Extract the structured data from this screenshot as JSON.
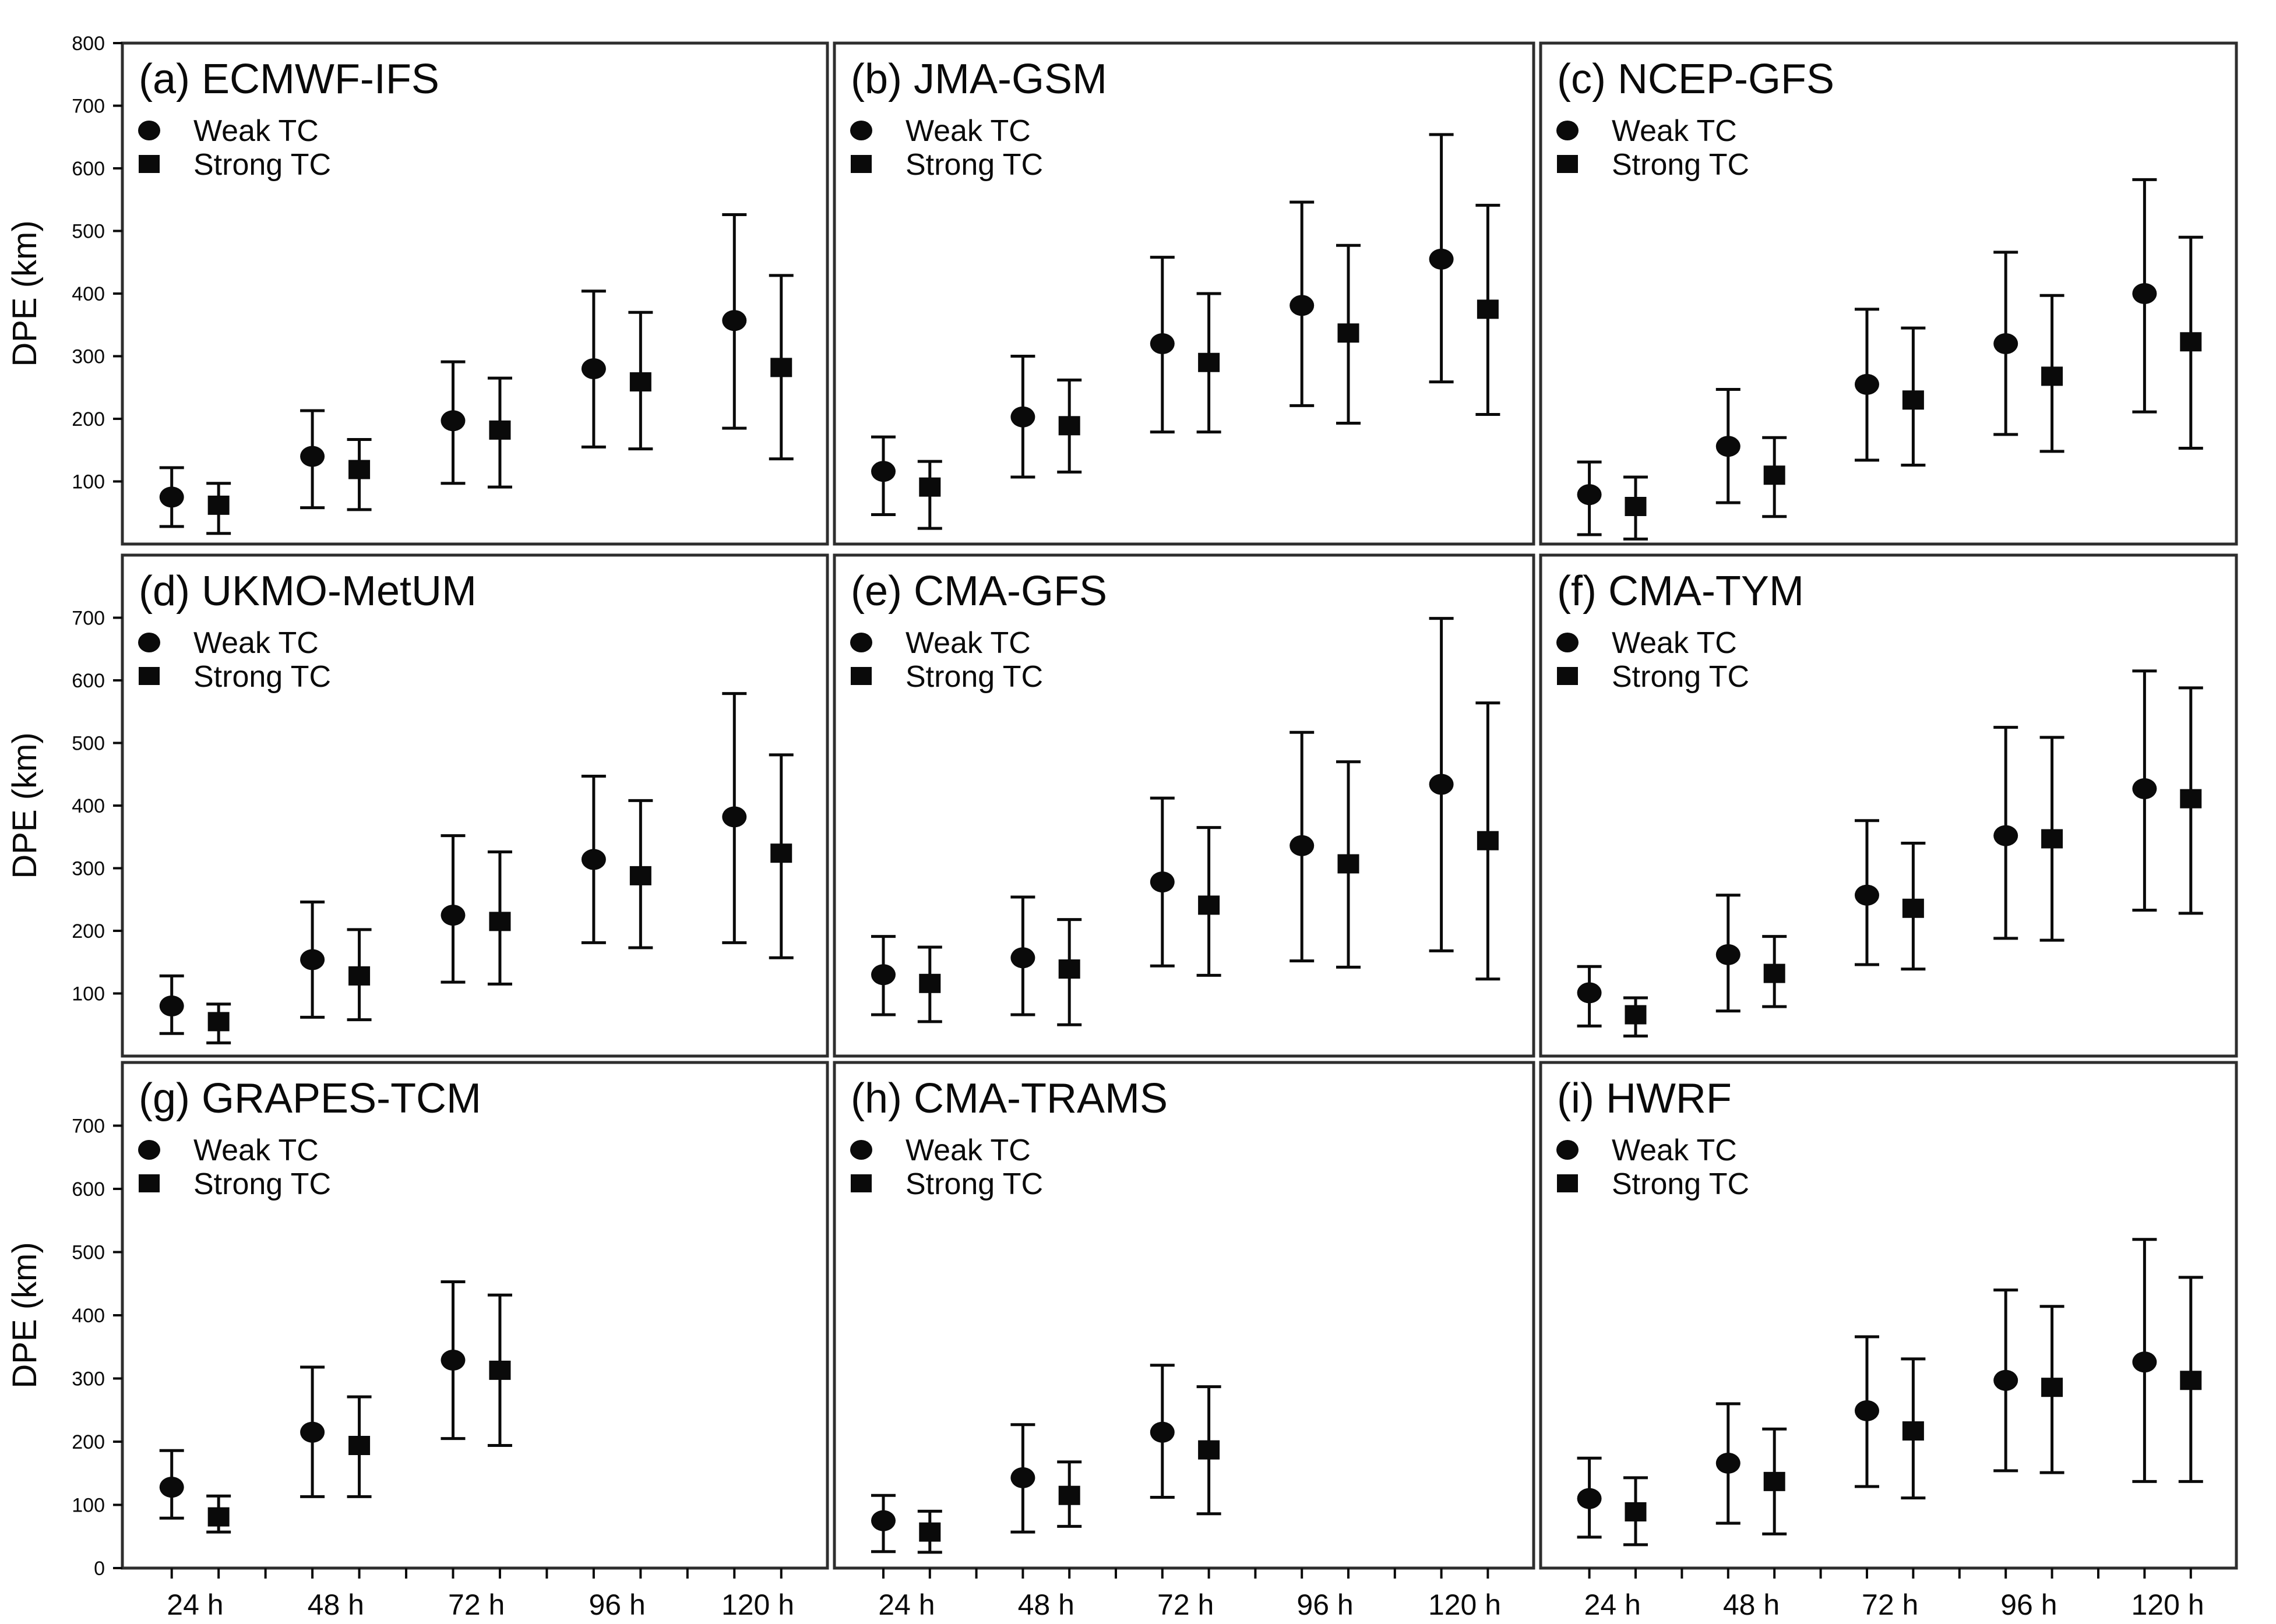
{
  "figure": {
    "background": "#ffffff",
    "ink": "#0a0a0a",
    "frame": "#2e2e2e",
    "ylabel": "DPE (km)",
    "ylim": [
      0,
      800
    ],
    "x_tick_labels": [
      "24 h",
      "48 h",
      "72 h",
      "96 h",
      "120 h"
    ],
    "rows": [
      {
        "ytick_labels": [
          "800",
          "700",
          "600",
          "500",
          "400",
          "300",
          "200",
          "100"
        ]
      },
      {
        "ytick_labels": [
          "700",
          "600",
          "500",
          "400",
          "300",
          "200",
          "100"
        ]
      },
      {
        "ytick_labels": [
          "700",
          "600",
          "500",
          "400",
          "300",
          "200",
          "100",
          "0"
        ]
      }
    ],
    "legend": {
      "weak_label": "Weak TC",
      "strong_label": "Strong TC"
    }
  },
  "chart_data": [
    {
      "panel": "a",
      "title": "(a) ECMWF-IFS",
      "type": "scatter",
      "series": [
        {
          "name": "Weak TC",
          "marker": "circle",
          "values": [
            {
              "x": "24 h",
              "mean": 75,
              "lo": 28,
              "hi": 122
            },
            {
              "x": "48 h",
              "mean": 140,
              "lo": 58,
              "hi": 213
            },
            {
              "x": "72 h",
              "mean": 197,
              "lo": 97,
              "hi": 291
            },
            {
              "x": "96 h",
              "mean": 280,
              "lo": 155,
              "hi": 404
            },
            {
              "x": "120 h",
              "mean": 357,
              "lo": 185,
              "hi": 526
            }
          ]
        },
        {
          "name": "Strong TC",
          "marker": "square",
          "values": [
            {
              "x": "24 h",
              "mean": 62,
              "lo": 17,
              "hi": 97
            },
            {
              "x": "48 h",
              "mean": 119,
              "lo": 55,
              "hi": 167
            },
            {
              "x": "72 h",
              "mean": 182,
              "lo": 91,
              "hi": 265
            },
            {
              "x": "96 h",
              "mean": 259,
              "lo": 152,
              "hi": 370
            },
            {
              "x": "120 h",
              "mean": 282,
              "lo": 136,
              "hi": 429
            }
          ]
        }
      ]
    },
    {
      "panel": "b",
      "title": "(b) JMA-GSM",
      "type": "scatter",
      "series": [
        {
          "name": "Weak TC",
          "marker": "circle",
          "values": [
            {
              "x": "24 h",
              "mean": 116,
              "lo": 47,
              "hi": 171
            },
            {
              "x": "48 h",
              "mean": 203,
              "lo": 107,
              "hi": 300
            },
            {
              "x": "72 h",
              "mean": 320,
              "lo": 179,
              "hi": 458
            },
            {
              "x": "96 h",
              "mean": 381,
              "lo": 221,
              "hi": 546
            },
            {
              "x": "120 h",
              "mean": 455,
              "lo": 259,
              "hi": 654
            }
          ]
        },
        {
          "name": "Strong TC",
          "marker": "square",
          "values": [
            {
              "x": "24 h",
              "mean": 91,
              "lo": 25,
              "hi": 132
            },
            {
              "x": "48 h",
              "mean": 189,
              "lo": 115,
              "hi": 262
            },
            {
              "x": "72 h",
              "mean": 290,
              "lo": 179,
              "hi": 400
            },
            {
              "x": "96 h",
              "mean": 337,
              "lo": 193,
              "hi": 477
            },
            {
              "x": "120 h",
              "mean": 375,
              "lo": 207,
              "hi": 541
            }
          ]
        }
      ]
    },
    {
      "panel": "c",
      "title": "(c) NCEP-GFS",
      "type": "scatter",
      "series": [
        {
          "name": "Weak TC",
          "marker": "circle",
          "values": [
            {
              "x": "24 h",
              "mean": 79,
              "lo": 15,
              "hi": 131
            },
            {
              "x": "48 h",
              "mean": 156,
              "lo": 66,
              "hi": 247
            },
            {
              "x": "72 h",
              "mean": 255,
              "lo": 134,
              "hi": 375
            },
            {
              "x": "96 h",
              "mean": 320,
              "lo": 175,
              "hi": 466
            },
            {
              "x": "120 h",
              "mean": 400,
              "lo": 211,
              "hi": 582
            }
          ]
        },
        {
          "name": "Strong TC",
          "marker": "square",
          "values": [
            {
              "x": "24 h",
              "mean": 60,
              "lo": 8,
              "hi": 107
            },
            {
              "x": "48 h",
              "mean": 110,
              "lo": 44,
              "hi": 170
            },
            {
              "x": "72 h",
              "mean": 230,
              "lo": 126,
              "hi": 345
            },
            {
              "x": "96 h",
              "mean": 268,
              "lo": 148,
              "hi": 397
            },
            {
              "x": "120 h",
              "mean": 323,
              "lo": 153,
              "hi": 490
            }
          ]
        }
      ]
    },
    {
      "panel": "d",
      "title": "(d) UKMO-MetUM",
      "type": "scatter",
      "series": [
        {
          "name": "Weak TC",
          "marker": "circle",
          "values": [
            {
              "x": "24 h",
              "mean": 80,
              "lo": 36,
              "hi": 128
            },
            {
              "x": "48 h",
              "mean": 154,
              "lo": 62,
              "hi": 246
            },
            {
              "x": "72 h",
              "mean": 225,
              "lo": 118,
              "hi": 352
            },
            {
              "x": "96 h",
              "mean": 314,
              "lo": 181,
              "hi": 447
            },
            {
              "x": "120 h",
              "mean": 382,
              "lo": 181,
              "hi": 579
            }
          ]
        },
        {
          "name": "Strong TC",
          "marker": "square",
          "values": [
            {
              "x": "24 h",
              "mean": 55,
              "lo": 21,
              "hi": 83
            },
            {
              "x": "48 h",
              "mean": 128,
              "lo": 58,
              "hi": 202
            },
            {
              "x": "72 h",
              "mean": 215,
              "lo": 115,
              "hi": 326
            },
            {
              "x": "96 h",
              "mean": 288,
              "lo": 173,
              "hi": 408
            },
            {
              "x": "120 h",
              "mean": 324,
              "lo": 157,
              "hi": 481
            }
          ]
        }
      ]
    },
    {
      "panel": "e",
      "title": "(e) CMA-GFS",
      "type": "scatter",
      "series": [
        {
          "name": "Weak TC",
          "marker": "circle",
          "values": [
            {
              "x": "24 h",
              "mean": 130,
              "lo": 66,
              "hi": 191
            },
            {
              "x": "48 h",
              "mean": 157,
              "lo": 66,
              "hi": 254
            },
            {
              "x": "72 h",
              "mean": 278,
              "lo": 144,
              "hi": 412
            },
            {
              "x": "96 h",
              "mean": 336,
              "lo": 152,
              "hi": 517
            },
            {
              "x": "120 h",
              "mean": 434,
              "lo": 168,
              "hi": 699
            }
          ]
        },
        {
          "name": "Strong TC",
          "marker": "square",
          "values": [
            {
              "x": "24 h",
              "mean": 116,
              "lo": 55,
              "hi": 174
            },
            {
              "x": "48 h",
              "mean": 139,
              "lo": 50,
              "hi": 218
            },
            {
              "x": "72 h",
              "mean": 241,
              "lo": 129,
              "hi": 365
            },
            {
              "x": "96 h",
              "mean": 307,
              "lo": 142,
              "hi": 470
            },
            {
              "x": "120 h",
              "mean": 344,
              "lo": 123,
              "hi": 564
            }
          ]
        }
      ]
    },
    {
      "panel": "f",
      "title": "(f) CMA-TYM",
      "type": "scatter",
      "series": [
        {
          "name": "Weak TC",
          "marker": "circle",
          "values": [
            {
              "x": "24 h",
              "mean": 101,
              "lo": 48,
              "hi": 143
            },
            {
              "x": "48 h",
              "mean": 162,
              "lo": 72,
              "hi": 257
            },
            {
              "x": "72 h",
              "mean": 257,
              "lo": 146,
              "hi": 376
            },
            {
              "x": "96 h",
              "mean": 352,
              "lo": 188,
              "hi": 525
            },
            {
              "x": "120 h",
              "mean": 427,
              "lo": 233,
              "hi": 615
            }
          ]
        },
        {
          "name": "Strong TC",
          "marker": "square",
          "values": [
            {
              "x": "24 h",
              "mean": 66,
              "lo": 32,
              "hi": 93
            },
            {
              "x": "48 h",
              "mean": 132,
              "lo": 79,
              "hi": 191
            },
            {
              "x": "72 h",
              "mean": 236,
              "lo": 139,
              "hi": 340
            },
            {
              "x": "96 h",
              "mean": 347,
              "lo": 185,
              "hi": 509
            },
            {
              "x": "120 h",
              "mean": 411,
              "lo": 228,
              "hi": 588
            }
          ]
        }
      ]
    },
    {
      "panel": "g",
      "title": "(g) GRAPES-TCM",
      "type": "scatter",
      "series": [
        {
          "name": "Weak TC",
          "marker": "circle",
          "values": [
            {
              "x": "24 h",
              "mean": 128,
              "lo": 79,
              "hi": 186
            },
            {
              "x": "48 h",
              "mean": 215,
              "lo": 113,
              "hi": 318
            },
            {
              "x": "72 h",
              "mean": 329,
              "lo": 205,
              "hi": 453
            }
          ]
        },
        {
          "name": "Strong TC",
          "marker": "square",
          "values": [
            {
              "x": "24 h",
              "mean": 81,
              "lo": 57,
              "hi": 114
            },
            {
              "x": "48 h",
              "mean": 194,
              "lo": 113,
              "hi": 271
            },
            {
              "x": "72 h",
              "mean": 313,
              "lo": 194,
              "hi": 432
            }
          ]
        }
      ]
    },
    {
      "panel": "h",
      "title": "(h) CMA-TRAMS",
      "type": "scatter",
      "series": [
        {
          "name": "Weak TC",
          "marker": "circle",
          "values": [
            {
              "x": "24 h",
              "mean": 75,
              "lo": 26,
              "hi": 115
            },
            {
              "x": "48 h",
              "mean": 143,
              "lo": 57,
              "hi": 227
            },
            {
              "x": "72 h",
              "mean": 215,
              "lo": 112,
              "hi": 321
            }
          ]
        },
        {
          "name": "Strong TC",
          "marker": "square",
          "values": [
            {
              "x": "24 h",
              "mean": 57,
              "lo": 25,
              "hi": 90
            },
            {
              "x": "48 h",
              "mean": 115,
              "lo": 66,
              "hi": 168
            },
            {
              "x": "72 h",
              "mean": 187,
              "lo": 86,
              "hi": 287
            }
          ]
        }
      ]
    },
    {
      "panel": "i",
      "title": "(i) HWRF",
      "type": "scatter",
      "series": [
        {
          "name": "Weak TC",
          "marker": "circle",
          "values": [
            {
              "x": "24 h",
              "mean": 110,
              "lo": 49,
              "hi": 174
            },
            {
              "x": "48 h",
              "mean": 166,
              "lo": 71,
              "hi": 260
            },
            {
              "x": "72 h",
              "mean": 249,
              "lo": 129,
              "hi": 366
            },
            {
              "x": "96 h",
              "mean": 297,
              "lo": 154,
              "hi": 440
            },
            {
              "x": "120 h",
              "mean": 326,
              "lo": 137,
              "hi": 520
            }
          ]
        },
        {
          "name": "Strong TC",
          "marker": "square",
          "values": [
            {
              "x": "24 h",
              "mean": 89,
              "lo": 37,
              "hi": 143
            },
            {
              "x": "48 h",
              "mean": 137,
              "lo": 54,
              "hi": 220
            },
            {
              "x": "72 h",
              "mean": 217,
              "lo": 111,
              "hi": 331
            },
            {
              "x": "96 h",
              "mean": 286,
              "lo": 151,
              "hi": 414
            },
            {
              "x": "120 h",
              "mean": 297,
              "lo": 137,
              "hi": 460
            }
          ]
        }
      ]
    }
  ]
}
